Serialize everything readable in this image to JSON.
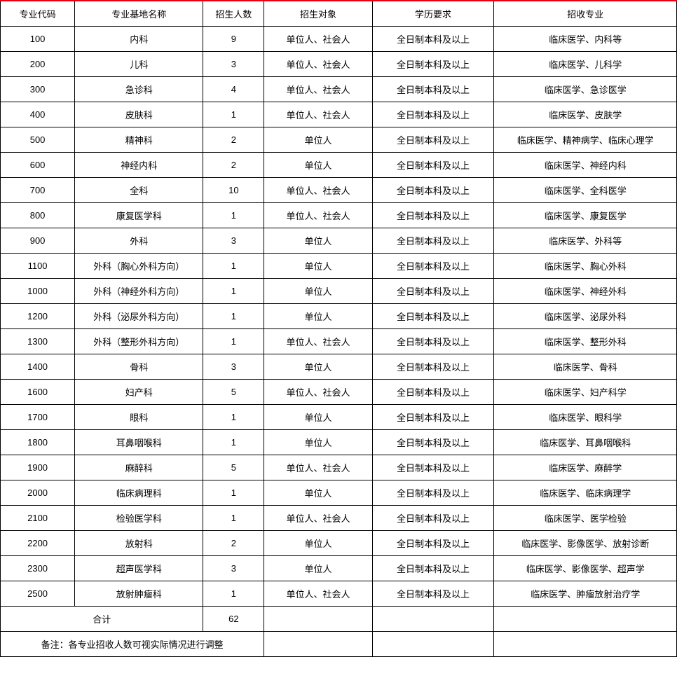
{
  "table": {
    "type": "table",
    "border_color": "#000000",
    "top_border_color": "#e60012",
    "background_color": "#ffffff",
    "text_color": "#000000",
    "font_size_pt": 10,
    "column_widths_pct": [
      11,
      19,
      9,
      16,
      18,
      27
    ],
    "columns": [
      "专业代码",
      "专业基地名称",
      "招生人数",
      "招生对象",
      "学历要求",
      "招收专业"
    ],
    "rows": [
      [
        "100",
        "内科",
        "9",
        "单位人、社会人",
        "全日制本科及以上",
        "临床医学、内科等"
      ],
      [
        "200",
        "儿科",
        "3",
        "单位人、社会人",
        "全日制本科及以上",
        "临床医学、儿科学"
      ],
      [
        "300",
        "急诊科",
        "4",
        "单位人、社会人",
        "全日制本科及以上",
        "临床医学、急诊医学"
      ],
      [
        "400",
        "皮肤科",
        "1",
        "单位人、社会人",
        "全日制本科及以上",
        "临床医学、皮肤学"
      ],
      [
        "500",
        "精神科",
        "2",
        "单位人",
        "全日制本科及以上",
        "临床医学、精神病学、临床心理学"
      ],
      [
        "600",
        "神经内科",
        "2",
        "单位人",
        "全日制本科及以上",
        "临床医学、神经内科"
      ],
      [
        "700",
        "全科",
        "10",
        "单位人、社会人",
        "全日制本科及以上",
        "临床医学、全科医学"
      ],
      [
        "800",
        "康复医学科",
        "1",
        "单位人、社会人",
        "全日制本科及以上",
        "临床医学、康复医学"
      ],
      [
        "900",
        "外科",
        "3",
        "单位人",
        "全日制本科及以上",
        "临床医学、外科等"
      ],
      [
        "1100",
        "外科（胸心外科方向）",
        "1",
        "单位人",
        "全日制本科及以上",
        "临床医学、胸心外科"
      ],
      [
        "1000",
        "外科（神经外科方向）",
        "1",
        "单位人",
        "全日制本科及以上",
        "临床医学、神经外科"
      ],
      [
        "1200",
        "外科（泌尿外科方向）",
        "1",
        "单位人",
        "全日制本科及以上",
        "临床医学、泌尿外科"
      ],
      [
        "1300",
        "外科（整形外科方向）",
        "1",
        "单位人、社会人",
        "全日制本科及以上",
        "临床医学、整形外科"
      ],
      [
        "1400",
        "骨科",
        "3",
        "单位人",
        "全日制本科及以上",
        "临床医学、骨科"
      ],
      [
        "1600",
        "妇产科",
        "5",
        "单位人、社会人",
        "全日制本科及以上",
        "临床医学、妇产科学"
      ],
      [
        "1700",
        "眼科",
        "1",
        "单位人",
        "全日制本科及以上",
        "临床医学、眼科学"
      ],
      [
        "1800",
        "耳鼻咽喉科",
        "1",
        "单位人",
        "全日制本科及以上",
        "临床医学、耳鼻咽喉科"
      ],
      [
        "1900",
        "麻醉科",
        "5",
        "单位人、社会人",
        "全日制本科及以上",
        "临床医学、麻醉学"
      ],
      [
        "2000",
        "临床病理科",
        "1",
        "单位人",
        "全日制本科及以上",
        "临床医学、临床病理学"
      ],
      [
        "2100",
        "检验医学科",
        "1",
        "单位人、社会人",
        "全日制本科及以上",
        "临床医学、医学检验"
      ],
      [
        "2200",
        "放射科",
        "2",
        "单位人",
        "全日制本科及以上",
        "临床医学、影像医学、放射诊断"
      ],
      [
        "2300",
        "超声医学科",
        "3",
        "单位人",
        "全日制本科及以上",
        "临床医学、影像医学、超声学"
      ],
      [
        "2500",
        "放射肿瘤科",
        "1",
        "单位人、社会人",
        "全日制本科及以上",
        "临床医学、肿瘤放射治疗学"
      ]
    ],
    "total_row": {
      "label": "合计",
      "value": "62"
    },
    "note_row": {
      "text": "备注：各专业招收人数可视实际情况进行调整"
    }
  }
}
